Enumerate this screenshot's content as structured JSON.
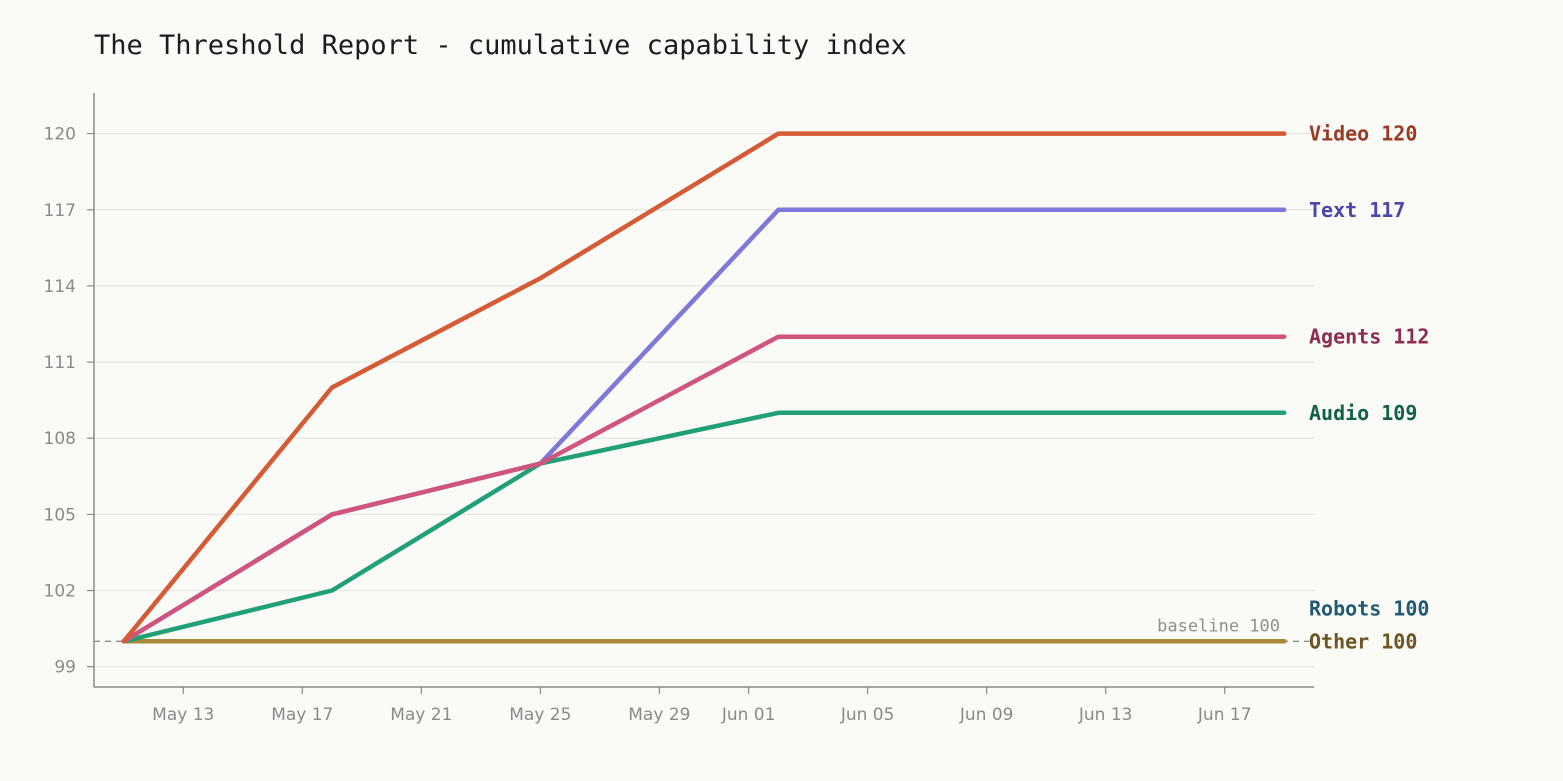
{
  "chart_data": {
    "type": "line",
    "title": "The Threshold Report - cumulative capability index",
    "xlabel": "",
    "ylabel": "",
    "x_dates": [
      "2025-05-11",
      "2025-05-18",
      "2025-05-25",
      "2025-06-02",
      "2025-06-19"
    ],
    "xlim": [
      "2025-05-10",
      "2025-06-20"
    ],
    "ylim": [
      98.2,
      121.6
    ],
    "x_ticks": [
      {
        "date": "2025-05-13",
        "label": "May 13"
      },
      {
        "date": "2025-05-17",
        "label": "May 17"
      },
      {
        "date": "2025-05-21",
        "label": "May 21"
      },
      {
        "date": "2025-05-25",
        "label": "May 25"
      },
      {
        "date": "2025-05-29",
        "label": "May 29"
      },
      {
        "date": "2025-06-01",
        "label": "Jun 01"
      },
      {
        "date": "2025-06-05",
        "label": "Jun 05"
      },
      {
        "date": "2025-06-09",
        "label": "Jun 09"
      },
      {
        "date": "2025-06-13",
        "label": "Jun 13"
      },
      {
        "date": "2025-06-17",
        "label": "Jun 17"
      }
    ],
    "y_ticks": [
      99,
      102,
      105,
      108,
      111,
      114,
      117,
      120
    ],
    "grid": "horizontal",
    "baseline": {
      "value": 100,
      "label": "baseline 100"
    },
    "series": [
      {
        "name": "Video",
        "label": "Video  120",
        "color": "#d45b35",
        "label_color": "#983b22",
        "values": [
          100,
          110,
          114.3,
          120,
          120
        ]
      },
      {
        "name": "Text",
        "label": "Text  117",
        "color": "#7e78d8",
        "label_color": "#4b45ac",
        "values": [
          100,
          105,
          107,
          117,
          117
        ]
      },
      {
        "name": "Agents",
        "label": "Agents  112",
        "color": "#d0557e",
        "label_color": "#8c2c4f",
        "values": [
          100,
          105,
          107,
          112,
          112
        ]
      },
      {
        "name": "Audio",
        "label": "Audio  109",
        "color": "#21a078",
        "label_color": "#126148",
        "values": [
          100,
          102,
          107,
          109,
          109
        ]
      },
      {
        "name": "Robots",
        "label": "Robots  100",
        "color": "#2f6f8c",
        "label_color": "#235a72",
        "values": [
          100,
          100,
          100,
          100,
          100
        ]
      },
      {
        "name": "Other",
        "label": "Other  100",
        "color": "#a8893a",
        "label_color": "#6e5524",
        "values": [
          100,
          100,
          100,
          100,
          100
        ]
      }
    ]
  }
}
